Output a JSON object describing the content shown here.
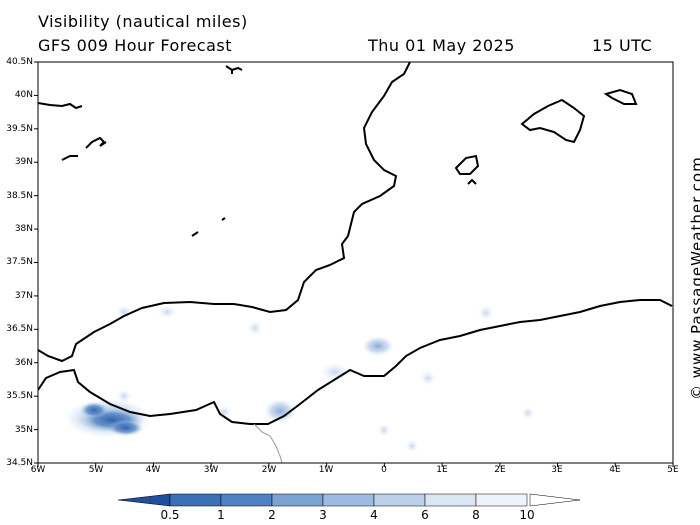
{
  "header": {
    "title": "Visibility (nautical miles)",
    "model": "GFS 009 Hour Forecast",
    "date": "Thu 01 May 2025",
    "time": "15 UTC"
  },
  "map": {
    "lat_labels": [
      "40.5N",
      "40N",
      "39.5N",
      "39N",
      "38.5N",
      "38N",
      "37.5N",
      "37N",
      "36.5N",
      "36N",
      "35.5N",
      "35N",
      "34.5N"
    ],
    "lon_labels": [
      "6W",
      "5W",
      "4W",
      "3W",
      "2W",
      "1W",
      "0",
      "1E",
      "2E",
      "3E",
      "4E",
      "5E"
    ],
    "coastline_color": "#000000",
    "border_color": "#999999"
  },
  "legend": {
    "labels": [
      "0.5",
      "1",
      "2",
      "3",
      "4",
      "6",
      "8",
      "10"
    ],
    "colors": [
      "#3b6fb6",
      "#4f82c4",
      "#7aa3d3",
      "#9dbbe0",
      "#bcd0ea",
      "#dbe6f3",
      "#eef3fa",
      "#ffffff"
    ],
    "below_color": "#1f4f9a"
  },
  "brand": "© www.PassageWeather.com"
}
